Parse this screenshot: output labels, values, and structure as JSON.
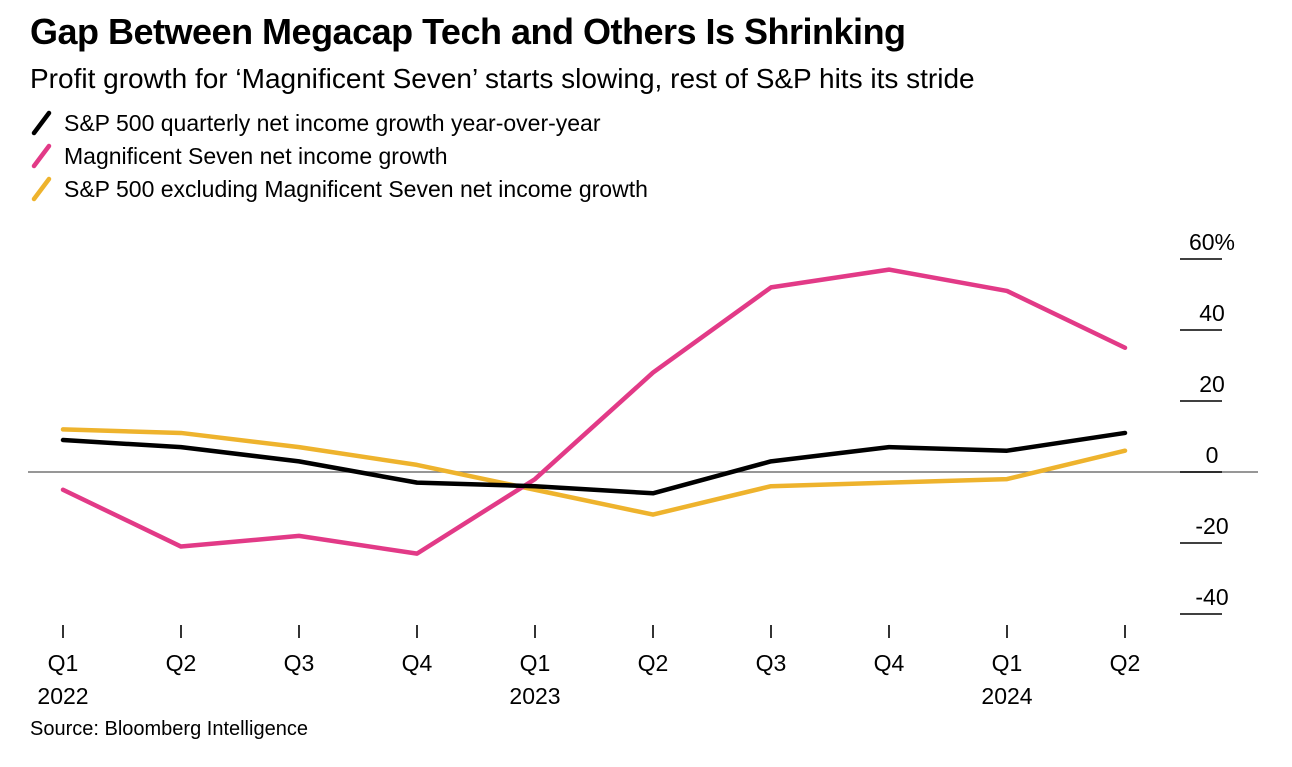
{
  "chart_data": {
    "type": "line",
    "title": "Gap Between Megacap Tech and Others Is Shrinking",
    "subtitle": "Profit growth for ‘Magnificent Seven’ starts slowing, rest of S&P hits its stride",
    "source": "Source: Bloomberg Intelligence",
    "unit": "%",
    "categories": [
      "Q1 2022",
      "Q2 2022",
      "Q3 2022",
      "Q4 2022",
      "Q1 2023",
      "Q2 2023",
      "Q3 2023",
      "Q4 2023",
      "Q1 2024",
      "Q2 2024"
    ],
    "x_tick_labels": [
      "Q1",
      "Q2",
      "Q3",
      "Q4",
      "Q1",
      "Q2",
      "Q3",
      "Q4",
      "Q1",
      "Q2"
    ],
    "x_year_labels": [
      {
        "index": 0,
        "text": "2022"
      },
      {
        "index": 4,
        "text": "2023"
      },
      {
        "index": 8,
        "text": "2024"
      }
    ],
    "y_ticks": [
      60,
      40,
      20,
      0,
      -20,
      -40
    ],
    "y_tick_labels": [
      "60%",
      "40",
      "20",
      "0",
      "-20",
      "-40"
    ],
    "ylim": [
      -48,
      62
    ],
    "grid": "zero-baseline-only",
    "legend_position": "top-left",
    "series": [
      {
        "id": "sp500",
        "name": "S&P 500 quarterly net income growth year-over-year",
        "color": "#000000",
        "values": [
          9,
          7,
          3,
          -3,
          -4,
          -6,
          3,
          7,
          6,
          11
        ]
      },
      {
        "id": "mag7",
        "name": "Magnificent Seven net income growth",
        "color": "#e23a87",
        "values": [
          -5,
          -21,
          -18,
          -23,
          -2,
          28,
          52,
          57,
          51,
          35
        ]
      },
      {
        "id": "sp500-ex-mag7",
        "name": "S&P 500 excluding Magnificent Seven net income growth",
        "color": "#eeb32d",
        "values": [
          12,
          11,
          7,
          2,
          -5,
          -12,
          -4,
          -3,
          -2,
          6
        ]
      }
    ]
  },
  "colors": {
    "background": "#ffffff",
    "zero_line": "#757575",
    "axis": "#000000"
  }
}
